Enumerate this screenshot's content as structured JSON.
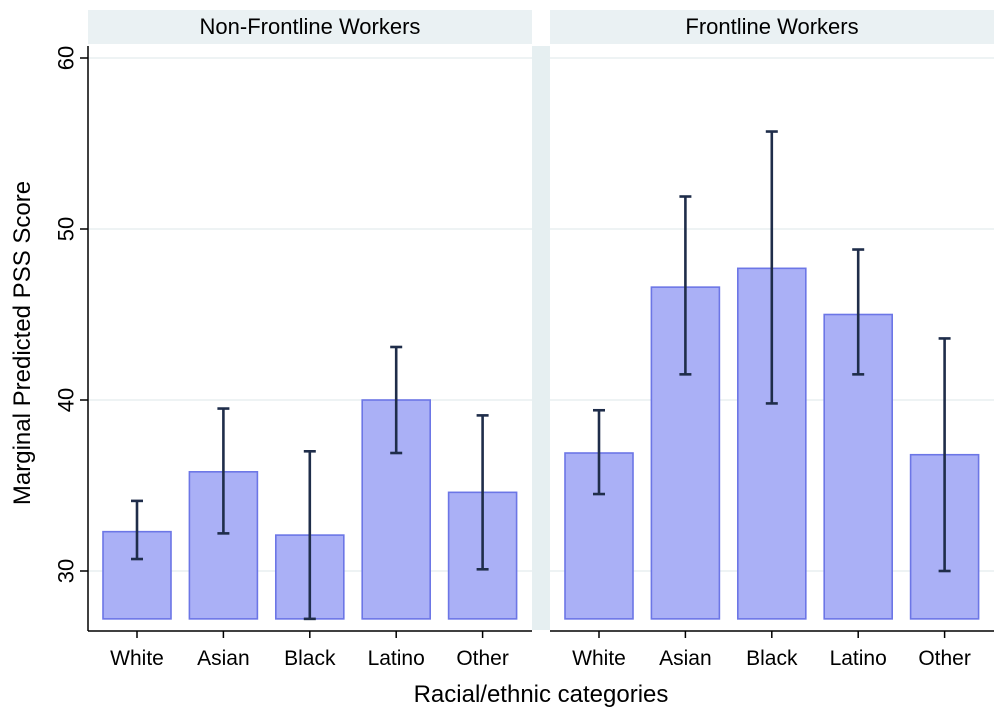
{
  "chart_data": {
    "type": "bar",
    "xlabel": "Racial/ethnic categories",
    "ylabel": "Marginal Predicted PSS Score",
    "yticks": [
      30,
      40,
      50,
      60
    ],
    "ylim": [
      26.8,
      61
    ],
    "baseline": 27.2,
    "grid": true,
    "error_bars": true,
    "colors": {
      "bar_fill": "#aab0f6",
      "bar_stroke": "#6c76e6",
      "error_bar": "#1f2d4a",
      "strip_bg": "#eaf1f3",
      "gridline": "#e3ecee",
      "separator": "#e6eff1"
    },
    "panels": [
      {
        "title": "Non-Frontline Workers",
        "categories": [
          "White",
          "Asian",
          "Black",
          "Latino",
          "Other"
        ],
        "values": [
          32.3,
          35.8,
          32.1,
          40.0,
          34.6
        ],
        "ci_low": [
          30.7,
          32.2,
          27.2,
          36.9,
          30.1
        ],
        "ci_high": [
          34.1,
          39.5,
          37.0,
          43.1,
          39.1
        ]
      },
      {
        "title": "Frontline Workers",
        "categories": [
          "White",
          "Asian",
          "Black",
          "Latino",
          "Other"
        ],
        "values": [
          36.9,
          46.6,
          47.7,
          45.0,
          36.8
        ],
        "ci_low": [
          34.5,
          41.5,
          39.8,
          41.5,
          30.0
        ],
        "ci_high": [
          39.4,
          51.9,
          55.7,
          48.8,
          43.6
        ]
      }
    ]
  }
}
